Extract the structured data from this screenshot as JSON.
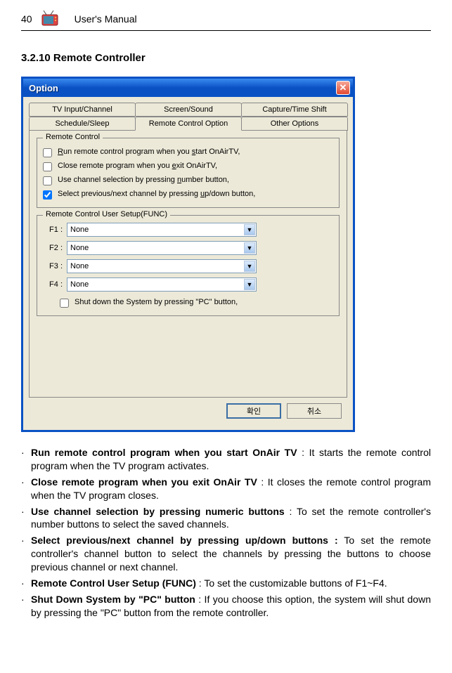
{
  "header": {
    "page_num": "40",
    "manual_title": "User's Manual"
  },
  "section": {
    "title": "3.2.10 Remote Controller"
  },
  "dialog": {
    "title": "Option",
    "close_glyph": "✕",
    "tabs_row1": [
      "TV Input/Channel",
      "Screen/Sound",
      "Capture/Time Shift"
    ],
    "tabs_row2": [
      "Schedule/Sleep",
      "Remote Control Option",
      "Other Options"
    ],
    "group_remote": {
      "title": "Remote Control",
      "items": [
        {
          "label_html": "<u>R</u>un remote control program when you <u>s</u>tart OnAirTV,",
          "checked": false
        },
        {
          "label_html": "Close remote program when you <u>e</u>xit OnAirTV,",
          "checked": false
        },
        {
          "label_html": "Use channel selection by pressing <u>n</u>umber button,",
          "checked": false
        },
        {
          "label_html": "Select previous/next channel by pressing <u>u</u>p/down button,",
          "checked": true
        }
      ]
    },
    "group_func": {
      "title": "Remote Control User Setup(FUNC)",
      "rows": [
        {
          "label": "F1 :",
          "value": "None"
        },
        {
          "label": "F2 :",
          "value": "None"
        },
        {
          "label": "F3 :",
          "value": "None"
        },
        {
          "label": "F4 :",
          "value": "None"
        }
      ],
      "shutdown_label": "Shut down the System by pressing \"PC\" button,"
    },
    "buttons": {
      "ok": "확인",
      "cancel": "취소"
    }
  },
  "bullets": [
    {
      "bold": "Run remote control program when you start OnAir TV",
      "rest": " : It starts the remote control program when the TV program activates."
    },
    {
      "bold": "Close remote program when you exit OnAir TV",
      "rest": " : It closes the remote control program when the TV program closes."
    },
    {
      "bold": "Use channel selection by pressing numeric buttons",
      "rest": " : To set the remote controller's number buttons to select the saved channels."
    },
    {
      "bold": "Select previous/next channel by pressing up/down buttons :",
      "rest": "   To set the remote controller's channel button to select the channels by pressing the buttons to choose previous channel or next channel."
    },
    {
      "bold": "Remote Control User Setup (FUNC)",
      "rest": " : To set the customizable buttons of F1~F4."
    },
    {
      "bold": "Shut Down System by \"PC\" button",
      "rest": " : If you choose this option, the system will shut down by pressing the \"PC\" button from the remote controller."
    }
  ]
}
